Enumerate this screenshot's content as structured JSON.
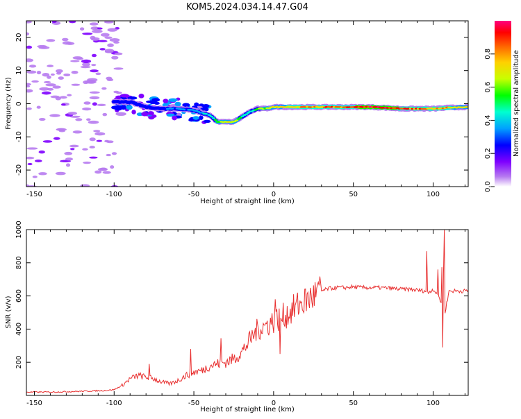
{
  "title": "KOM5.2024.034.14.47.G04",
  "chart_data": [
    {
      "type": "heatmap",
      "xlabel": "Height of straight line (km)",
      "ylabel": "Frequency (Hz)",
      "xlim": [
        -155,
        122
      ],
      "ylim": [
        -25,
        25
      ],
      "x_ticks": [
        -150,
        -100,
        -50,
        0,
        50,
        100
      ],
      "y_ticks": [
        -20,
        -10,
        0,
        10,
        20
      ],
      "grid": false,
      "colorbar": {
        "label": "Normalized spectral amplitude",
        "range": [
          0,
          1
        ],
        "ticks": [
          0.0,
          0.2,
          0.4,
          0.6,
          0.8
        ],
        "colormap": [
          "#ffffff",
          "#b77bf0",
          "#7f00ff",
          "#0000ff",
          "#00a0ff",
          "#00ffd0",
          "#00ff00",
          "#c8ff00",
          "#ffd000",
          "#ff6000",
          "#ff0000",
          "#ff0080"
        ]
      },
      "ridge": {
        "x": [
          -100,
          -90,
          -80,
          -70,
          -60,
          -50,
          -40,
          -35,
          -30,
          -25,
          -20,
          -15,
          -10,
          -5,
          0,
          10,
          20,
          30,
          40,
          50,
          60,
          70,
          80,
          90,
          100,
          110,
          122
        ],
        "freq": [
          0.5,
          0.5,
          -1,
          -1.5,
          -1.5,
          -2,
          -3.5,
          -5.5,
          -5.5,
          -5.5,
          -4,
          -2.5,
          -1.5,
          -1.5,
          -1,
          -1,
          -1,
          -1,
          -1,
          -1,
          -1,
          -1.2,
          -1.5,
          -1.5,
          -1.5,
          -1.2,
          -1
        ],
        "amplitude": [
          0.25,
          0.3,
          0.3,
          0.3,
          0.35,
          0.35,
          0.45,
          0.6,
          0.7,
          0.7,
          0.5,
          0.45,
          0.55,
          0.65,
          0.7,
          0.75,
          0.8,
          0.85,
          0.85,
          0.9,
          0.95,
          0.95,
          0.9,
          0.85,
          0.8,
          0.75,
          0.7
        ]
      }
    },
    {
      "type": "line",
      "xlabel": "Height of straight line (km)",
      "ylabel": "SNR (v/v)",
      "xlim": [
        -155,
        122
      ],
      "ylim": [
        0,
        1000
      ],
      "x_ticks": [
        -150,
        -100,
        -50,
        0,
        50,
        100
      ],
      "y_ticks": [
        200,
        400,
        600,
        800,
        1000
      ],
      "grid": false,
      "color": "#e83030",
      "series": [
        {
          "x": [
            -155,
            -140,
            -120,
            -105,
            -100,
            -95,
            -90,
            -85,
            -80,
            -75,
            -70,
            -65,
            -60,
            -55,
            -50,
            -45,
            -40,
            -35,
            -30,
            -25,
            -20,
            -15,
            -10,
            -5,
            0,
            5,
            10,
            15,
            20,
            25,
            30,
            35,
            40,
            45,
            50,
            55,
            60,
            65,
            70,
            75,
            80,
            85,
            90,
            95,
            97,
            100,
            103,
            105,
            106,
            107,
            110,
            115,
            122
          ],
          "y": [
            20,
            20,
            25,
            30,
            35,
            60,
            100,
            120,
            110,
            100,
            80,
            70,
            90,
            120,
            140,
            150,
            180,
            190,
            200,
            220,
            260,
            330,
            400,
            420,
            450,
            470,
            500,
            540,
            570,
            600,
            630,
            645,
            650,
            650,
            655,
            650,
            650,
            650,
            648,
            645,
            640,
            640,
            635,
            630,
            620,
            640,
            610,
            560,
            1000,
            480,
            630,
            630,
            630
          ]
        }
      ],
      "spikes": [
        {
          "x": -78,
          "y": 190
        },
        {
          "x": -52,
          "y": 280
        },
        {
          "x": -33,
          "y": 345
        },
        {
          "x": -18,
          "y": 280
        },
        {
          "x": 1,
          "y": 580
        },
        {
          "x": 4,
          "y": 250
        },
        {
          "x": 96,
          "y": 870
        },
        {
          "x": 103,
          "y": 760
        },
        {
          "x": 106,
          "y": 290
        },
        {
          "x": 107,
          "y": 1000
        }
      ]
    }
  ]
}
